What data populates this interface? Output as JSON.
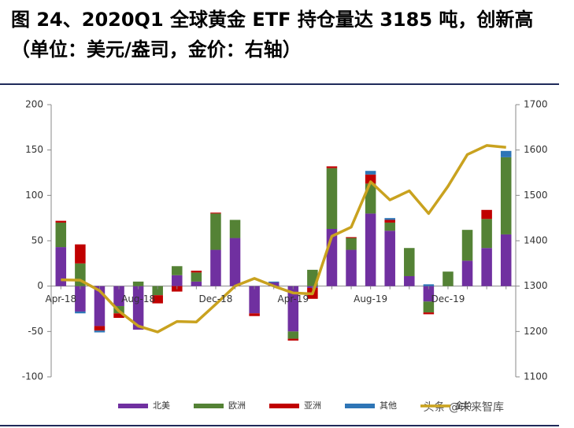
{
  "chart_data": {
    "type": "bar",
    "stacked": true,
    "title": "图 24、2020Q1 全球黄金 ETF 持仓量达 3185 吨，创新高（单位：美元/盎司，金价：右轴）",
    "watermark": "头条 @未来智库",
    "categories": [
      "Apr-18",
      null,
      null,
      null,
      "Aug-18",
      null,
      null,
      null,
      "Dec-18",
      null,
      null,
      null,
      "Apr-19",
      null,
      null,
      null,
      "Aug-19",
      null,
      null,
      null,
      "Dec-19",
      null,
      null,
      null
    ],
    "series": [
      {
        "name": "北美",
        "color": "#7030a0",
        "values": [
          43,
          -28,
          -44,
          -22,
          -48,
          0,
          12,
          5,
          40,
          53,
          -30,
          4,
          -50,
          -2,
          63,
          40,
          80,
          61,
          11,
          -17,
          0,
          28,
          42,
          57
        ]
      },
      {
        "name": "欧洲",
        "color": "#548235",
        "values": [
          27,
          25,
          0,
          -8,
          5,
          -10,
          10,
          10,
          40,
          20,
          0,
          0,
          -8,
          18,
          67,
          13,
          33,
          9,
          31,
          -12,
          16,
          34,
          32,
          85
        ]
      },
      {
        "name": "亚洲",
        "color": "#c00000",
        "values": [
          2,
          21,
          -5,
          -5,
          0,
          -9,
          -6,
          2,
          1,
          0,
          -3,
          0,
          -2,
          -12,
          2,
          1,
          10,
          3,
          0,
          -2,
          0,
          0,
          10,
          0
        ]
      },
      {
        "name": "其他",
        "color": "#2e75b6",
        "values": [
          0,
          -2,
          -2,
          0,
          0,
          0,
          0,
          0,
          0,
          0,
          0,
          1,
          0,
          0,
          0,
          0,
          4,
          2,
          0,
          2,
          0,
          0,
          0,
          7
        ]
      },
      {
        "name": "金价",
        "color": "#c9a21f",
        "type": "line",
        "axis": "y2",
        "values": [
          1314,
          1313,
          1290,
          1245,
          1212,
          1199,
          1222,
          1221,
          1260,
          1300,
          1317,
          1300,
          1285,
          1283,
          1410,
          1430,
          1530,
          1490,
          1510,
          1460,
          1520,
          1590,
          1610,
          1606
        ]
      }
    ],
    "ylim": [
      -100,
      200
    ],
    "yticks": [
      -100,
      -50,
      0,
      50,
      100,
      150,
      200
    ],
    "y2lim": [
      1100,
      1700
    ],
    "y2ticks": [
      1100,
      1200,
      1300,
      1400,
      1500,
      1600,
      1700
    ],
    "legend": "bottom"
  }
}
